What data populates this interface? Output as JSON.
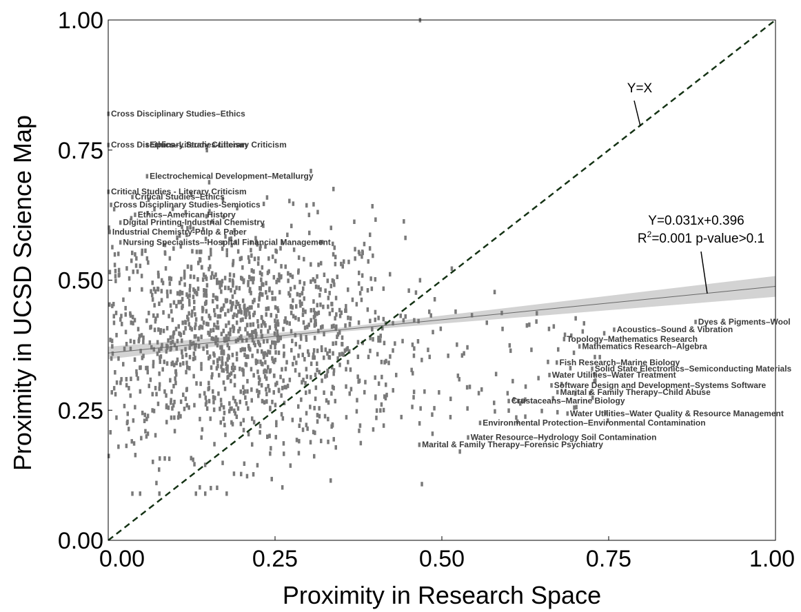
{
  "chart_data": {
    "type": "scatter",
    "xlabel": "Proximity in Research Space",
    "ylabel": "Proximity in UCSD Science Map",
    "xlim": [
      0,
      1
    ],
    "ylim": [
      0,
      1
    ],
    "xticks": [
      "0.00",
      "0.25",
      "0.50",
      "0.75",
      "1.00"
    ],
    "yticks": [
      "0.00",
      "0.25",
      "0.50",
      "0.75",
      "1.00"
    ],
    "grid": false,
    "marker_color": "#7a7a7a",
    "identity_line": {
      "label": "Y=X",
      "style": "dashed",
      "color": "#143214"
    },
    "fit_line": {
      "slope": 0.031,
      "intercept": 0.396,
      "equation_label": "Y=0.031x+0.396",
      "stats_label_prefix": "R",
      "stats_label_sup": "2",
      "stats_label_suffix": "=0.001 p-value>0.1",
      "band_color": "#d3d3d3",
      "line_color": "#666666"
    },
    "labeled_points": [
      {
        "label": "Cross Disciplinary Studies–Ethics",
        "x": 0.0,
        "y": 0.82
      },
      {
        "label": "Cross Disciplinary Studies-Literary Criticism",
        "x": 0.0,
        "y": 0.76
      },
      {
        "label": "Ethics–Literary Criticism",
        "x": 0.058,
        "y": 0.76
      },
      {
        "label": "Electrochemical Development–Metallurgy",
        "x": 0.058,
        "y": 0.7
      },
      {
        "label": "Critical Studies - Literary Criticism",
        "x": 0.0,
        "y": 0.67
      },
      {
        "label": "Critical Studies–Ethics",
        "x": 0.036,
        "y": 0.66
      },
      {
        "label": "Cross Disciplinary Studies-Semiotics",
        "x": 0.004,
        "y": 0.645
      },
      {
        "label": "Ethics–American History",
        "x": 0.04,
        "y": 0.626
      },
      {
        "label": "Digital Printing-Industrial Chemistry",
        "x": 0.018,
        "y": 0.611
      },
      {
        "label": "Industrial Chemistry-Pulp & Paper",
        "x": 0.002,
        "y": 0.593
      },
      {
        "label": "Nursing Specialists–-Hospital Financial Management",
        "x": 0.018,
        "y": 0.573
      },
      {
        "label": "Dyes & Pigments–Wool",
        "x": 0.88,
        "y": 0.42
      },
      {
        "label": "Acoustics–Sound & Vibration",
        "x": 0.758,
        "y": 0.405
      },
      {
        "label": "Topology–Mathematics Research",
        "x": 0.683,
        "y": 0.387
      },
      {
        "label": "Mathematics Research–Algebra",
        "x": 0.706,
        "y": 0.373
      },
      {
        "label": "Fish Research–Marine Biology",
        "x": 0.672,
        "y": 0.342
      },
      {
        "label": "Solid State Electronics–Semiconducting Materials",
        "x": 0.725,
        "y": 0.33
      },
      {
        "label": "Water Utilities–Water Treatment",
        "x": 0.661,
        "y": 0.318
      },
      {
        "label": "Software Design and Development–Systems Software",
        "x": 0.664,
        "y": 0.298
      },
      {
        "label": "Marital & Family Therapy–Child Abuse",
        "x": 0.673,
        "y": 0.285
      },
      {
        "label": "Crustaceans–Marine Biology",
        "x": 0.6,
        "y": 0.268
      },
      {
        "label": "Water Utilities–Water Quality & Resource Management",
        "x": 0.688,
        "y": 0.244
      },
      {
        "label": "Environmental Protection–Environmental Contamination",
        "x": 0.557,
        "y": 0.226
      },
      {
        "label": "Water Resource–Hydrology Soil Contamination",
        "x": 0.539,
        "y": 0.198
      },
      {
        "label": "Marital & Family Therapy–Forensic Psychiatry",
        "x": 0.466,
        "y": 0.184
      }
    ]
  }
}
